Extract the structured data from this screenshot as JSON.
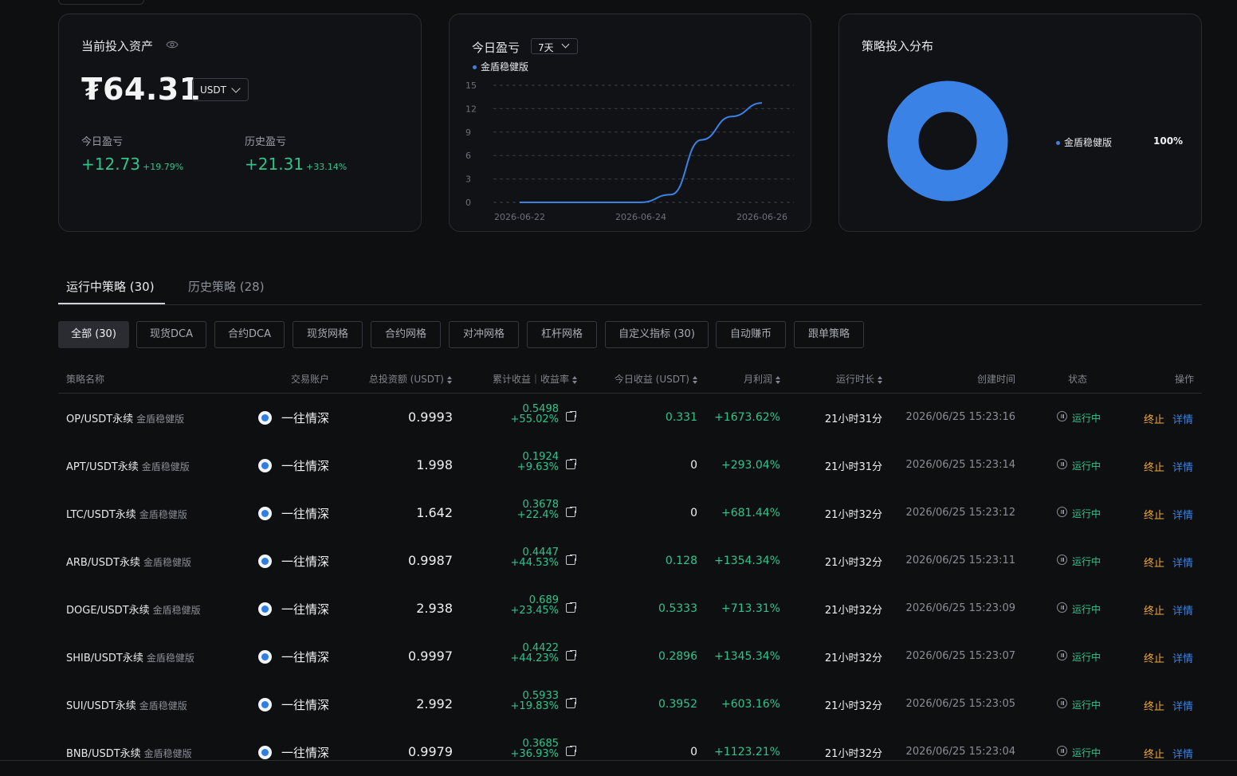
{
  "assets": {
    "title": "当前投入资产",
    "value": "₮64.31",
    "currency": "USDT",
    "today_label": "今日盈亏",
    "today_value": "+12.73",
    "today_pct": "+19.79%",
    "history_label": "历史盈亏",
    "history_value": "+21.31",
    "history_pct": "+33.14%"
  },
  "pnl_chart_card": {
    "title": "今日盈亏",
    "range": "7天"
  },
  "chart_data": [
    {
      "type": "line",
      "title": "今日盈亏",
      "series": [
        {
          "name": "金盾稳健版",
          "color": "#3b82e6",
          "x": [
            "2026-06-22",
            "2026-06-23",
            "2026-06-24",
            "2026-06-24 12:00",
            "2026-06-25",
            "2026-06-25 12:00",
            "2026-06-26"
          ],
          "y": [
            0,
            0,
            0,
            1.0,
            8.0,
            11.0,
            12.73
          ]
        }
      ],
      "x_ticks": [
        "2026-06-22",
        "2026-06-24",
        "2026-06-26"
      ],
      "y_ticks": [
        "15",
        "12",
        "9",
        "6",
        "3",
        "0"
      ],
      "ylim": [
        0,
        15
      ],
      "grid": true
    },
    {
      "type": "pie",
      "title": "策略投入分布",
      "labels": [
        "金盾稳健版"
      ],
      "values": [
        100
      ],
      "colors": [
        "#3b82e6"
      ],
      "donut": true,
      "legend_value": "100%"
    }
  ],
  "tabs": [
    {
      "label": "运行中策略 (30)",
      "active": true
    },
    {
      "label": "历史策略 (28)",
      "active": false
    }
  ],
  "filters": [
    "全部 (30)",
    "现货DCA",
    "合约DCA",
    "现货网格",
    "合约网格",
    "对冲网格",
    "杠杆网格",
    "自定义指标 (30)",
    "自动赚币",
    "跟单策略"
  ],
  "columns": {
    "name": "策略名称",
    "account": "交易账户",
    "invest": "总投资额 (USDT)",
    "cum": "累计收益｜收益率",
    "today": "今日收益 (USDT)",
    "month": "月利润",
    "duration": "运行时长",
    "created": "创建时间",
    "status": "状态",
    "action": "操作"
  },
  "rows": [
    {
      "name": "OP/USDT永续",
      "tag": "金盾稳健版",
      "account": "一往情深",
      "invest": "0.9993",
      "cum": "0.5498",
      "cum_pct": "+55.02%",
      "today": "0.331",
      "today_pos": true,
      "month": "+1673.62%",
      "duration": "21小时31分",
      "created": "2026/06/25 15:23:16",
      "status": "运行中",
      "stop": "终止",
      "detail": "详情"
    },
    {
      "name": "APT/USDT永续",
      "tag": "金盾稳健版",
      "account": "一往情深",
      "invest": "1.998",
      "cum": "0.1924",
      "cum_pct": "+9.63%",
      "today": "0",
      "today_pos": false,
      "month": "+293.04%",
      "duration": "21小时31分",
      "created": "2026/06/25 15:23:14",
      "status": "运行中",
      "stop": "终止",
      "detail": "详情"
    },
    {
      "name": "LTC/USDT永续",
      "tag": "金盾稳健版",
      "account": "一往情深",
      "invest": "1.642",
      "cum": "0.3678",
      "cum_pct": "+22.4%",
      "today": "0",
      "today_pos": false,
      "month": "+681.44%",
      "duration": "21小时32分",
      "created": "2026/06/25 15:23:12",
      "status": "运行中",
      "stop": "终止",
      "detail": "详情"
    },
    {
      "name": "ARB/USDT永续",
      "tag": "金盾稳健版",
      "account": "一往情深",
      "invest": "0.9987",
      "cum": "0.4447",
      "cum_pct": "+44.53%",
      "today": "0.128",
      "today_pos": true,
      "month": "+1354.34%",
      "duration": "21小时32分",
      "created": "2026/06/25 15:23:11",
      "status": "运行中",
      "stop": "终止",
      "detail": "详情"
    },
    {
      "name": "DOGE/USDT永续",
      "tag": "金盾稳健版",
      "account": "一往情深",
      "invest": "2.938",
      "cum": "0.689",
      "cum_pct": "+23.45%",
      "today": "0.5333",
      "today_pos": true,
      "month": "+713.31%",
      "duration": "21小时32分",
      "created": "2026/06/25 15:23:09",
      "status": "运行中",
      "stop": "终止",
      "detail": "详情"
    },
    {
      "name": "SHIB/USDT永续",
      "tag": "金盾稳健版",
      "account": "一往情深",
      "invest": "0.9997",
      "cum": "0.4422",
      "cum_pct": "+44.23%",
      "today": "0.2896",
      "today_pos": true,
      "month": "+1345.34%",
      "duration": "21小时32分",
      "created": "2026/06/25 15:23:07",
      "status": "运行中",
      "stop": "终止",
      "detail": "详情"
    },
    {
      "name": "SUI/USDT永续",
      "tag": "金盾稳健版",
      "account": "一往情深",
      "invest": "2.992",
      "cum": "0.5933",
      "cum_pct": "+19.83%",
      "today": "0.3952",
      "today_pos": true,
      "month": "+603.16%",
      "duration": "21小时32分",
      "created": "2026/06/25 15:23:05",
      "status": "运行中",
      "stop": "终止",
      "detail": "详情"
    },
    {
      "name": "BNB/USDT永续",
      "tag": "金盾稳健版",
      "account": "一往情深",
      "invest": "0.9979",
      "cum": "0.3685",
      "cum_pct": "+36.93%",
      "today": "0",
      "today_pos": false,
      "month": "+1123.21%",
      "duration": "21小时32分",
      "created": "2026/06/25 15:23:04",
      "status": "运行中",
      "stop": "终止",
      "detail": "详情"
    }
  ]
}
